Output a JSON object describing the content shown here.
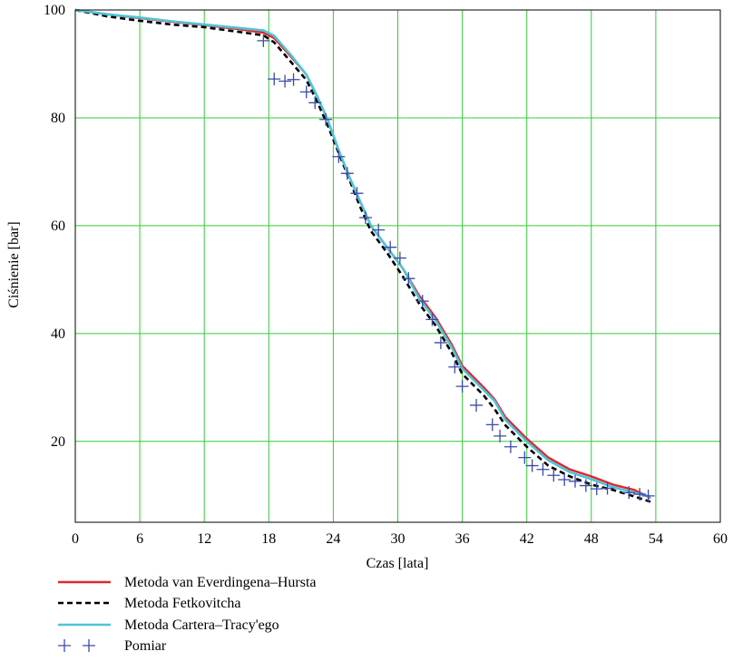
{
  "chart_data": {
    "type": "line",
    "xlabel": "Czas [lata]",
    "ylabel": "Ciśnienie [bar]",
    "xlim": [
      0,
      60
    ],
    "ylim": [
      5,
      100
    ],
    "xticks": [
      0,
      6,
      12,
      18,
      24,
      30,
      36,
      42,
      48,
      54,
      60
    ],
    "yticks": [
      20,
      40,
      60,
      80,
      100
    ],
    "grid": true,
    "grid_color": "#33cc33",
    "legend_position": "below the plot",
    "series": [
      {
        "name": "Metoda van Everdingena–Hursta",
        "style": "solid",
        "color": "#e0262b",
        "x": [
          0,
          3,
          6,
          9,
          12,
          15,
          17.5,
          18.5,
          20,
          21.5,
          22.5,
          23.5,
          24.5,
          25.5,
          26.5,
          27.5,
          29,
          30.5,
          32,
          33.5,
          35,
          36,
          38,
          39,
          40,
          42,
          44,
          46,
          48,
          50,
          52,
          53.5
        ],
        "y": [
          100,
          99.2,
          98.5,
          97.8,
          97.2,
          96.5,
          95.8,
          94.8,
          91.5,
          88,
          84,
          79.5,
          74,
          69,
          64.5,
          60,
          56,
          52,
          47,
          43,
          38,
          34,
          30,
          27.8,
          24.5,
          20.5,
          17,
          14.8,
          13.5,
          12,
          11,
          9.5
        ]
      },
      {
        "name": "Metoda Fetkovitcha",
        "style": "dashed",
        "color": "#000000",
        "x": [
          0,
          3,
          6,
          9,
          12,
          15,
          17.5,
          18.5,
          20,
          21.5,
          22.5,
          23.5,
          24.5,
          25.5,
          26.5,
          27.5,
          29,
          30.5,
          32,
          33.5,
          35,
          36,
          38,
          39,
          40,
          42,
          44,
          46,
          48,
          50,
          52,
          53.5
        ],
        "y": [
          100,
          98.8,
          98,
          97.3,
          96.8,
          96,
          95.3,
          94,
          90.5,
          87,
          83,
          78.5,
          73.5,
          68.5,
          63.5,
          59,
          55,
          50.5,
          45.5,
          41.5,
          36.5,
          32.5,
          28.5,
          26,
          23,
          19,
          15.5,
          13.5,
          12,
          11,
          9.8,
          8.8
        ]
      },
      {
        "name": "Metoda Cartera–Tracy'ego",
        "style": "solid",
        "color": "#4fc3d9",
        "x": [
          0,
          3,
          6,
          9,
          12,
          15,
          17.5,
          18.5,
          20,
          21.5,
          22.5,
          23.5,
          24.5,
          25.5,
          26.5,
          27.5,
          29,
          30.5,
          32,
          33.5,
          35,
          36,
          38,
          39,
          40,
          42,
          44,
          46,
          48,
          50,
          52,
          53.5
        ],
        "y": [
          100,
          99.2,
          98.6,
          97.9,
          97.3,
          96.7,
          96.2,
          95.2,
          91.8,
          88,
          84,
          79.5,
          74,
          69,
          64.5,
          60,
          56,
          52,
          46.5,
          42.5,
          37.5,
          33.5,
          29.5,
          27.5,
          24,
          20,
          16.5,
          14.3,
          13,
          11.5,
          10.5,
          9.7
        ]
      },
      {
        "name": "Pomiar",
        "style": "markers",
        "color": "#3a4aa8",
        "x": [
          17.5,
          18.5,
          19.5,
          20.3,
          21.5,
          22.3,
          23.3,
          24.5,
          25.3,
          26.2,
          27,
          28.2,
          29.3,
          30.2,
          31,
          32.3,
          33.2,
          34,
          35.3,
          36,
          37.3,
          38.8,
          39.5,
          40.5,
          41.8,
          42.5,
          43.5,
          44.5,
          45.5,
          46.5,
          47.5,
          48.5,
          49.5,
          51.5,
          52.5,
          53.3
        ],
        "y": [
          94.3,
          87.2,
          86.8,
          87.1,
          84.8,
          82.8,
          79.7,
          72.8,
          69.7,
          66,
          61.5,
          59.2,
          56,
          54,
          50.2,
          46,
          42.6,
          38.3,
          33.8,
          30.2,
          26.7,
          23.1,
          21,
          19,
          17,
          15.5,
          14.8,
          13.7,
          12.9,
          12.6,
          11.8,
          11.2,
          11.3,
          10.5,
          10.2,
          9.9
        ]
      }
    ]
  }
}
